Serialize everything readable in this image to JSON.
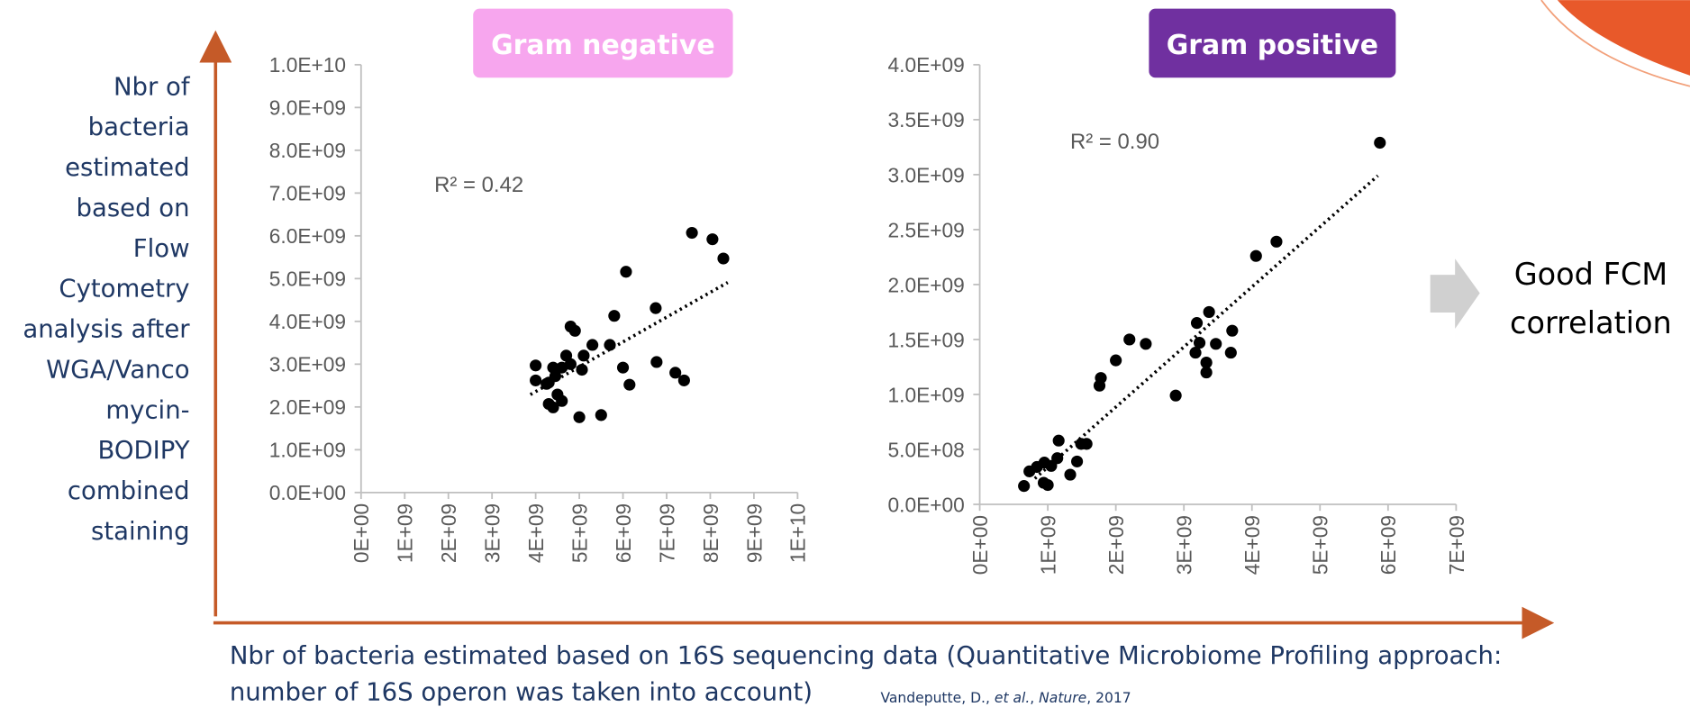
{
  "slide": {
    "y_label_lines": [
      "Nbr of",
      "bacteria",
      "estimated",
      "based on",
      "Flow",
      "Cytometry",
      "analysis after",
      "WGA/Vanco",
      "mycin-",
      "BODIPY",
      "combined",
      "staining"
    ],
    "x_label_lines": [
      "Nbr of bacteria estimated based on 16S sequencing data (Quantitative Microbiome Profiling approach:",
      "number of 16S operon was taken into account)"
    ],
    "citation": [
      "Vandeputte, D., ",
      "et al.",
      ", ",
      "Nature",
      ", 2017"
    ],
    "conclusion_lines": [
      "Good FCM",
      "correlation"
    ]
  },
  "chart_data": [
    {
      "type": "scatter",
      "title": "Gram negative",
      "title_color": "#f7a6ee",
      "annotation": "R² = 0.42",
      "color": "#000000",
      "xlim": [
        0,
        10000000000.0
      ],
      "xticks": [
        {
          "value": 0,
          "label": "0E+00"
        },
        {
          "value": 1000000000.0,
          "label": "1E+09"
        },
        {
          "value": 2000000000.0,
          "label": "2E+09"
        },
        {
          "value": 3000000000.0,
          "label": "3E+09"
        },
        {
          "value": 4000000000.0,
          "label": "4E+09"
        },
        {
          "value": 5000000000.0,
          "label": "5E+09"
        },
        {
          "value": 6000000000.0,
          "label": "6E+09"
        },
        {
          "value": 7000000000.0,
          "label": "7E+09"
        },
        {
          "value": 8000000000.0,
          "label": "8E+09"
        },
        {
          "value": 9000000000.0,
          "label": "9E+09"
        },
        {
          "value": 10000000000.0,
          "label": "1E+10"
        }
      ],
      "ylim": [
        0,
        10000000000.0
      ],
      "yticks": [
        {
          "value": 0,
          "label": "0.0E+00"
        },
        {
          "value": 1000000000.0,
          "label": "1.0E+09"
        },
        {
          "value": 2000000000.0,
          "label": "2.0E+09"
        },
        {
          "value": 3000000000.0,
          "label": "3.0E+09"
        },
        {
          "value": 4000000000.0,
          "label": "4.0E+09"
        },
        {
          "value": 5000000000.0,
          "label": "5.0E+09"
        },
        {
          "value": 6000000000.0,
          "label": "6.0E+09"
        },
        {
          "value": 7000000000.0,
          "label": "7.0E+09"
        },
        {
          "value": 8000000000.0,
          "label": "8.0E+09"
        },
        {
          "value": 9000000000.0,
          "label": "9.0E+09"
        },
        {
          "value": 10000000000.0,
          "label": "1.0E+10"
        }
      ],
      "x": [
        4000000000.0,
        4000000000.0,
        4250000000.0,
        4300000000.0,
        4400000000.0,
        4300000000.0,
        4400000000.0,
        4500000000.0,
        4600000000.0,
        4700000000.0,
        4600000000.0,
        4800000000.0,
        4900000000.0,
        4800000000.0,
        5060000000.0,
        5100000000.0,
        5000000000.0,
        5300000000.0,
        5500000000.0,
        5700000000.0,
        5800000000.0,
        6000000000.0,
        6070000000.0,
        6150000000.0,
        6750000000.0,
        6770000000.0,
        7200000000.0,
        7400000000.0,
        7580000000.0,
        8050000000.0,
        8300000000.0,
        4450000000.0
      ],
      "values": [
        2970000000.0,
        2620000000.0,
        2540000000.0,
        2070000000.0,
        1990000000.0,
        2570000000.0,
        2920000000.0,
        2290000000.0,
        2140000000.0,
        3200000000.0,
        2920000000.0,
        3880000000.0,
        3780000000.0,
        3000000000.0,
        2870000000.0,
        3200000000.0,
        1760000000.0,
        3450000000.0,
        1810000000.0,
        3450000000.0,
        4130000000.0,
        2920000000.0,
        5160000000.0,
        2520000000.0,
        4310000000.0,
        3050000000.0,
        2800000000.0,
        2620000000.0,
        6070000000.0,
        5920000000.0,
        5470000000.0,
        2720000000.0
      ],
      "trendline": {
        "x": [
          3880000000.0,
          8400000000.0
        ],
        "values": [
          2290000000.0,
          4910000000.0
        ]
      }
    },
    {
      "type": "scatter",
      "title": "Gram positive",
      "title_color": "#7030a0",
      "annotation": "R² = 0.90",
      "color": "#000000",
      "xlim": [
        0,
        7000000000.0
      ],
      "xticks": [
        {
          "value": 0,
          "label": "0E+00"
        },
        {
          "value": 1000000000.0,
          "label": "1E+09"
        },
        {
          "value": 2000000000.0,
          "label": "2E+09"
        },
        {
          "value": 3000000000.0,
          "label": "3E+09"
        },
        {
          "value": 4000000000.0,
          "label": "4E+09"
        },
        {
          "value": 5000000000.0,
          "label": "5E+09"
        },
        {
          "value": 6000000000.0,
          "label": "6E+09"
        },
        {
          "value": 7000000000.0,
          "label": "7E+09"
        }
      ],
      "ylim": [
        0,
        4000000000.0
      ],
      "yticks": [
        {
          "value": 0,
          "label": "0.0E+00"
        },
        {
          "value": 500000000.0,
          "label": "5.0E+08"
        },
        {
          "value": 1000000000.0,
          "label": "1.0E+09"
        },
        {
          "value": 1500000000.0,
          "label": "1.5E+09"
        },
        {
          "value": 2000000000.0,
          "label": "2.0E+09"
        },
        {
          "value": 2500000000.0,
          "label": "2.5E+09"
        },
        {
          "value": 3000000000.0,
          "label": "3.0E+09"
        },
        {
          "value": 3500000000.0,
          "label": "3.5E+09"
        },
        {
          "value": 4000000000.0,
          "label": "4.0E+09"
        }
      ],
      "x": [
        650000000.0,
        730000000.0,
        840000000.0,
        940000000.0,
        1000000000.0,
        950000000.0,
        1050000000.0,
        1140000000.0,
        1160000000.0,
        1330000000.0,
        1430000000.0,
        1490000000.0,
        1570000000.0,
        1760000000.0,
        1780000000.0,
        2000000000.0,
        2200000000.0,
        2440000000.0,
        2880000000.0,
        3170000000.0,
        3190000000.0,
        3230000000.0,
        3330000000.0,
        3330000000.0,
        3370000000.0,
        3470000000.0,
        3710000000.0,
        3690000000.0,
        4060000000.0,
        4360000000.0,
        5880000000.0
      ],
      "values": [
        167000000.0,
        300000000.0,
        340000000.0,
        196000000.0,
        176000000.0,
        380000000.0,
        350000000.0,
        420000000.0,
        580000000.0,
        270000000.0,
        390000000.0,
        550000000.0,
        550000000.0,
        1080000000.0,
        1150000000.0,
        1310000000.0,
        1500000000.0,
        1460000000.0,
        990000000.0,
        1380000000.0,
        1650000000.0,
        1470000000.0,
        1290000000.0,
        1200000000.0,
        1750000000.0,
        1460000000.0,
        1580000000.0,
        1380000000.0,
        2260000000.0,
        2390000000.0,
        3290000000.0
      ],
      "trendline": {
        "x": [
          810000000.0,
          5850000000.0
        ],
        "values": [
          235000000.0,
          2990000000.0
        ]
      }
    }
  ]
}
